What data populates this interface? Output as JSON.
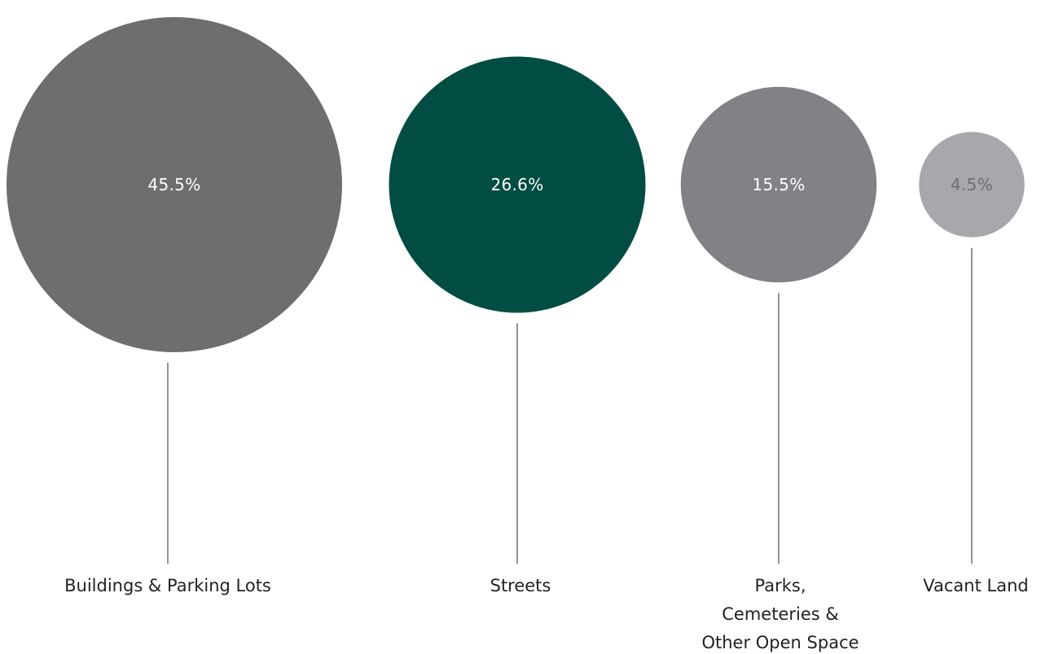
{
  "chart_data": {
    "type": "bubble",
    "title": "",
    "unit": "%",
    "categories": [
      "Buildings & Parking Lots",
      "Streets",
      "Parks, Cemeteries & Other Open Space",
      "Vacant Land"
    ],
    "category_lines": [
      [
        "Buildings & Parking Lots"
      ],
      [
        "Streets"
      ],
      [
        "Parks,",
        "Cemeteries &",
        "Other Open Space"
      ],
      [
        "Vacant Land"
      ]
    ],
    "values": [
      45.5,
      26.6,
      15.5,
      4.5
    ],
    "value_labels": [
      "45.5%",
      "26.6%",
      "15.5%",
      "4.5%"
    ],
    "colors": [
      "#6d6e70",
      "#024d43",
      "#818285",
      "#a7a8ab"
    ],
    "value_label_colors": [
      "#ffffff",
      "#ffffff",
      "#ffffff",
      "#6d6e70"
    ],
    "legend": "none",
    "grid": false
  }
}
